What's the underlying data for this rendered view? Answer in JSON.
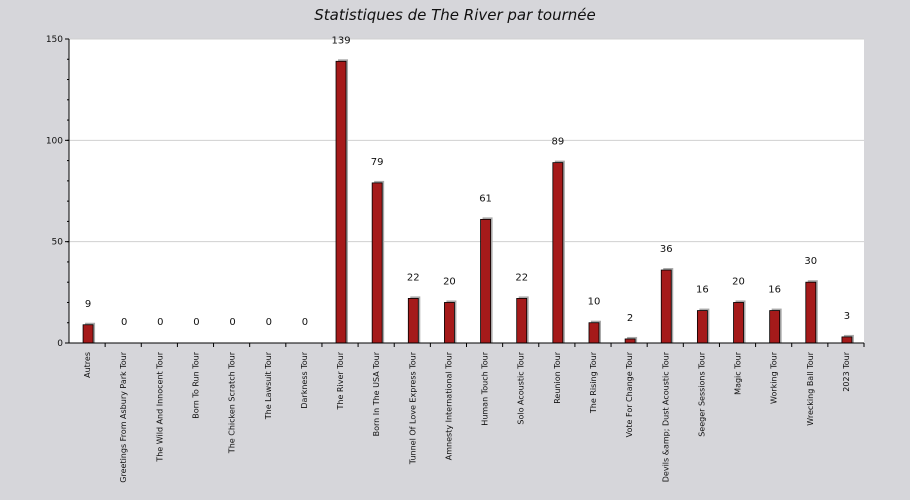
{
  "chart_data": {
    "type": "bar",
    "title": "Statistiques de The River par tournée",
    "xlabel": "",
    "ylabel": "",
    "ylim": [
      0,
      150
    ],
    "yticks": [
      0,
      50,
      100,
      150
    ],
    "grid": true,
    "categories": [
      "Autres",
      "Greetings From Asbury Park Tour",
      "The Wild And Innocent Tour",
      "Born To Run Tour",
      "The Chicken Scratch Tour",
      "The Lawsuit Tour",
      "Darkness Tour",
      "The River Tour",
      "Born In The USA Tour",
      "Tunnel Of Love Express Tour",
      "Amnesty International Tour",
      "Human Touch Tour",
      "Solo Acoustic Tour",
      "Reunion Tour",
      "The Rising Tour",
      "Vote For Change Tour",
      "Devils &amp; Dust Acoustic Tour",
      "Seeger Sessions Tour",
      "Magic Tour",
      "Working Tour",
      "Wrecking Ball Tour",
      "2023 Tour"
    ],
    "values": [
      9,
      0,
      0,
      0,
      0,
      0,
      0,
      139,
      79,
      22,
      20,
      61,
      22,
      89,
      10,
      2,
      36,
      16,
      20,
      16,
      30,
      3
    ],
    "colors": {
      "bar": "#a51a1a",
      "bar_shadow": "#a9a9a9",
      "plot_bg": "#ffffff",
      "page_bg": "#d6d6da",
      "grid": "#d0d0d0"
    }
  }
}
